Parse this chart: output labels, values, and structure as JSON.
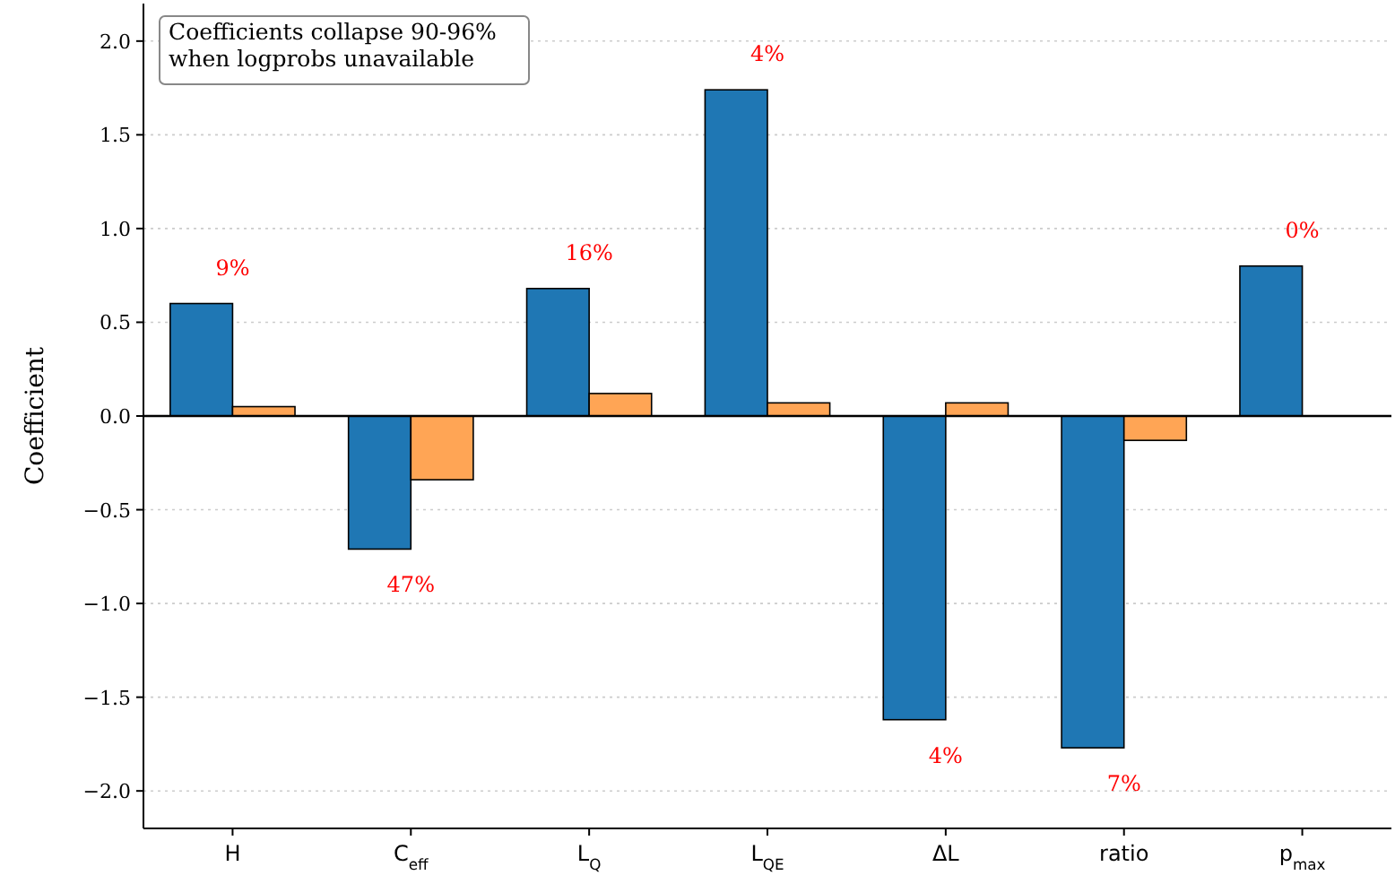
{
  "chart_data": {
    "type": "bar",
    "ylabel": "Coefficient",
    "categories": [
      "H",
      "C$_{eff}$",
      "L$_{Q}$",
      "L$_{QE}$",
      "ΔL",
      "ratio",
      "p$_{max}$"
    ],
    "series": [
      {
        "color": "#1f77b4",
        "values": [
          0.6,
          -0.71,
          0.68,
          1.74,
          -1.62,
          -1.77,
          0.8
        ]
      },
      {
        "color": "#ffa555",
        "values": [
          0.05,
          -0.34,
          0.12,
          0.07,
          0.07,
          -0.13,
          0
        ]
      }
    ],
    "ylim": [
      -2.2,
      2.2
    ],
    "yticks": [
      {
        "value": -2,
        "label": "−2.0"
      },
      {
        "value": -1.5,
        "label": "−1.5"
      },
      {
        "value": -1,
        "label": "−1.0"
      },
      {
        "value": -0.5,
        "label": "−0.5"
      },
      {
        "value": 0,
        "label": "0.0"
      },
      {
        "value": 0.5,
        "label": "0.5"
      },
      {
        "value": 1,
        "label": "1.0"
      },
      {
        "value": 1.5,
        "label": "1.5"
      },
      {
        "value": 2,
        "label": "2.0"
      }
    ],
    "ref_lines": [
      {
        "axis": "y",
        "value": 0,
        "color": "#000000"
      }
    ],
    "grid": "y",
    "annotations": [
      "Coefficients collapse 90-96%\nwhen logprobs unavailable",
      {
        "text": "9%",
        "x": "H",
        "y": 0.6
      },
      {
        "text": "47%",
        "x": "C$_{eff}$",
        "y": -0.71
      },
      {
        "text": "16%",
        "x": "L$_{Q}$",
        "y": 0.68
      },
      {
        "text": "4%",
        "x": "L$_{QE}$",
        "y": 1.74
      },
      {
        "text": "4%",
        "x": "ΔL",
        "y": -1.62
      },
      {
        "text": "7%",
        "x": "ratio",
        "y": -1.77
      },
      {
        "text": "0%",
        "x": "p$_{max}$",
        "y": 0.8
      }
    ]
  }
}
